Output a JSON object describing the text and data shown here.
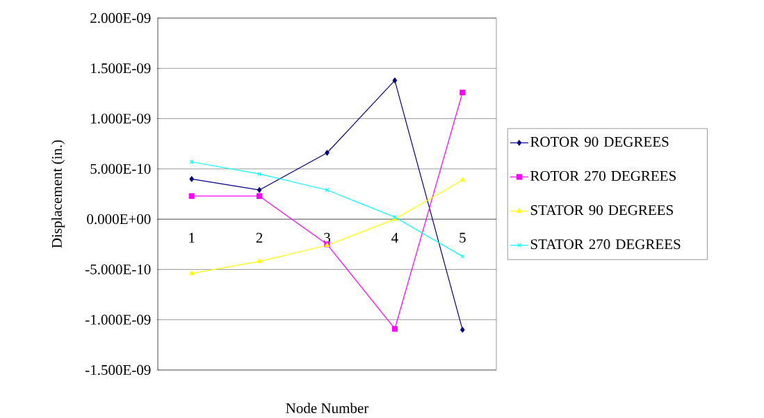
{
  "chart_data": {
    "type": "line",
    "xlabel": "Node Number",
    "ylabel": "Displacement (in.)",
    "categories": [
      "1",
      "2",
      "3",
      "4",
      "5"
    ],
    "series": [
      {
        "name": "ROTOR 90 DEGREES",
        "color": "#000080",
        "marker": "diamond",
        "values": [
          4e-10,
          2.9e-10,
          6.6e-10,
          1.38e-09,
          -1.1e-09
        ]
      },
      {
        "name": "ROTOR 270 DEGREES",
        "color": "#ff00ff",
        "marker": "square",
        "values": [
          2.3e-10,
          2.3e-10,
          -2.5e-10,
          -1.09e-09,
          1.26e-09
        ]
      },
      {
        "name": "STATOR 90 DEGREES",
        "color": "#ffff00",
        "marker": "triangle",
        "values": [
          -5.4e-10,
          -4.2e-10,
          -2.6e-10,
          0.0,
          3.9e-10
        ]
      },
      {
        "name": "STATOR 270 DEGREES",
        "color": "#00ffff",
        "marker": "cross",
        "values": [
          5.7e-10,
          4.5e-10,
          2.9e-10,
          2e-11,
          -3.7e-10
        ]
      }
    ],
    "ylim": [
      -1.5e-09,
      2e-09
    ],
    "yticks": [
      {
        "value": -1.5e-09,
        "label": "-1.500E-09"
      },
      {
        "value": -1e-09,
        "label": "-1.000E-09"
      },
      {
        "value": -5e-10,
        "label": "-5.000E-10"
      },
      {
        "value": 0,
        "label": "0.000E+00"
      },
      {
        "value": 5e-10,
        "label": "5.000E-10"
      },
      {
        "value": 1e-09,
        "label": "1.000E-09"
      },
      {
        "value": 1.5e-09,
        "label": "1.500E-09"
      },
      {
        "value": 2e-09,
        "label": "2.000E-09"
      }
    ],
    "grid": "y",
    "legend": "right"
  }
}
